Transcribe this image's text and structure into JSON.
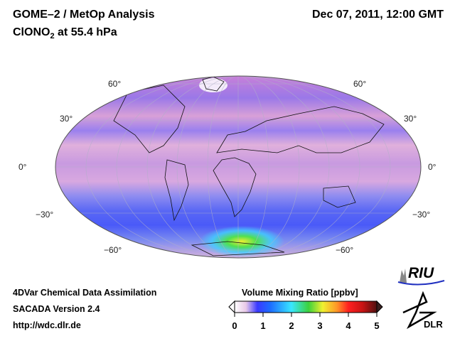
{
  "header": {
    "title": "GOME–2 / MetOp Analysis",
    "species": "ClONO",
    "species_sub": "2",
    "level": " at 55.4 hPa",
    "datetime": "Dec 07, 2011, 12:00 GMT"
  },
  "map": {
    "lat_labels_left": [
      "60°",
      "30°",
      "0°",
      "−30°",
      "−60°"
    ],
    "lat_labels_right": [
      "60°",
      "30°",
      "0°",
      "−30°",
      "−60°"
    ]
  },
  "footer": {
    "line1": "4DVar Chemical Data Assimilation",
    "line2": "SACADA Version 2.4",
    "url": "http://wdc.dlr.de"
  },
  "colorbar": {
    "title": "Volume Mixing Ratio [ppbv]",
    "ticks": [
      "0",
      "1",
      "2",
      "3",
      "4",
      "5"
    ],
    "colors": [
      "#ffffff",
      "#e8c8e8",
      "#3a3aff",
      "#1e6cff",
      "#39e6ff",
      "#3cd23c",
      "#f0f030",
      "#ff9628",
      "#ff2020",
      "#c81414",
      "#501010"
    ]
  },
  "logos": {
    "riu": "RIU",
    "dlr": "DLR"
  }
}
